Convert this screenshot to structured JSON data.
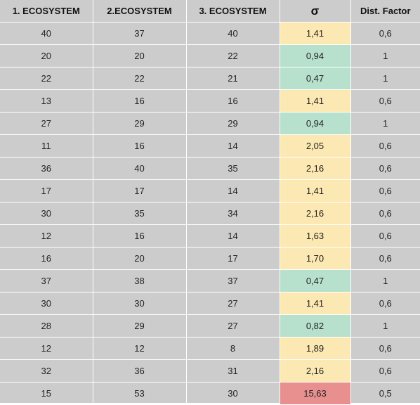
{
  "colors": {
    "cell_background": "#cccccc",
    "grid_line": "#ffffff",
    "low_sigma_green": "#b7e1cd",
    "mid_sigma_yellow": "#fce8b2",
    "high_sigma_red": "#e88f8f"
  },
  "headers": {
    "eco1": "1. ECOSYSTEM",
    "eco2": "2.ECOSYSTEM",
    "eco3": "3. ECOSYSTEM",
    "sigma": "σ",
    "dist": "Dist. Factor"
  },
  "rows": [
    {
      "eco1": "40",
      "eco2": "37",
      "eco3": "40",
      "sigma": "1,41",
      "dist": "0,6",
      "sigma_level": "warn"
    },
    {
      "eco1": "20",
      "eco2": "20",
      "eco3": "22",
      "sigma": "0,94",
      "dist": "1",
      "sigma_level": "ok"
    },
    {
      "eco1": "22",
      "eco2": "22",
      "eco3": "21",
      "sigma": "0,47",
      "dist": "1",
      "sigma_level": "ok"
    },
    {
      "eco1": "13",
      "eco2": "16",
      "eco3": "16",
      "sigma": "1,41",
      "dist": "0,6",
      "sigma_level": "warn"
    },
    {
      "eco1": "27",
      "eco2": "29",
      "eco3": "29",
      "sigma": "0,94",
      "dist": "1",
      "sigma_level": "ok"
    },
    {
      "eco1": "11",
      "eco2": "16",
      "eco3": "14",
      "sigma": "2,05",
      "dist": "0,6",
      "sigma_level": "warn"
    },
    {
      "eco1": "36",
      "eco2": "40",
      "eco3": "35",
      "sigma": "2,16",
      "dist": "0,6",
      "sigma_level": "warn"
    },
    {
      "eco1": "17",
      "eco2": "17",
      "eco3": "14",
      "sigma": "1,41",
      "dist": "0,6",
      "sigma_level": "warn"
    },
    {
      "eco1": "30",
      "eco2": "35",
      "eco3": "34",
      "sigma": "2,16",
      "dist": "0,6",
      "sigma_level": "warn"
    },
    {
      "eco1": "12",
      "eco2": "16",
      "eco3": "14",
      "sigma": "1,63",
      "dist": "0,6",
      "sigma_level": "warn"
    },
    {
      "eco1": "16",
      "eco2": "20",
      "eco3": "17",
      "sigma": "1,70",
      "dist": "0,6",
      "sigma_level": "warn"
    },
    {
      "eco1": "37",
      "eco2": "38",
      "eco3": "37",
      "sigma": "0,47",
      "dist": "1",
      "sigma_level": "ok"
    },
    {
      "eco1": "30",
      "eco2": "30",
      "eco3": "27",
      "sigma": "1,41",
      "dist": "0,6",
      "sigma_level": "warn"
    },
    {
      "eco1": "28",
      "eco2": "29",
      "eco3": "27",
      "sigma": "0,82",
      "dist": "1",
      "sigma_level": "ok"
    },
    {
      "eco1": "12",
      "eco2": "12",
      "eco3": "8",
      "sigma": "1,89",
      "dist": "0,6",
      "sigma_level": "warn"
    },
    {
      "eco1": "32",
      "eco2": "36",
      "eco3": "31",
      "sigma": "2,16",
      "dist": "0,6",
      "sigma_level": "warn"
    },
    {
      "eco1": "15",
      "eco2": "53",
      "eco3": "30",
      "sigma": "15,63",
      "dist": "0,5",
      "sigma_level": "bad"
    }
  ]
}
